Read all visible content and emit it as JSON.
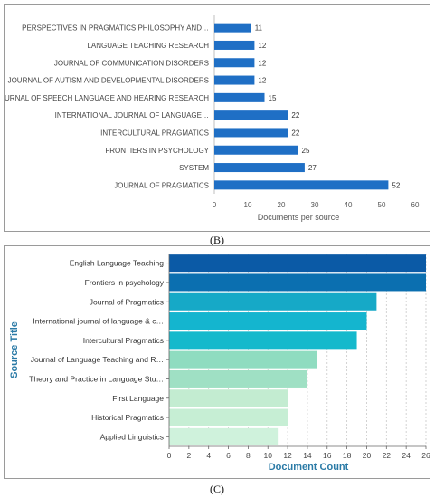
{
  "panels": {
    "b_label": "(B)",
    "c_label": "(C)"
  },
  "colors": {
    "b_bar": "#1f6fc5",
    "c_gradient": [
      "#0b5aa6",
      "#0b6fb0",
      "#16a9c7",
      "#14b5cf",
      "#15b9cc",
      "#8fdcc0",
      "#9fe0c4",
      "#c3ecd1",
      "#c6eed4",
      "#cff2dc"
    ],
    "c_axis_title": "#2a7aa6"
  },
  "chart_data": [
    {
      "type": "bar",
      "orientation": "horizontal",
      "categories": [
        "PERSPECTIVES IN PRAGMATICS PHILOSOPHY AND…",
        "LANGUAGE TEACHING RESEARCH",
        "JOURNAL OF COMMUNICATION DISORDERS",
        "JOURNAL OF AUTISM AND DEVELOPMENTAL DISORDERS",
        "JOURNAL OF SPEECH LANGUAGE AND HEARING RESEARCH",
        "INTERNATIONAL JOURNAL OF LANGUAGE…",
        "INTERCULTURAL PRAGMATICS",
        "FRONTIERS IN PSYCHOLOGY",
        "SYSTEM",
        "JOURNAL OF PRAGMATICS"
      ],
      "values": [
        11,
        12,
        12,
        12,
        15,
        22,
        22,
        25,
        27,
        52
      ],
      "data_labels": [
        "11",
        "12",
        "12",
        "12",
        "15",
        "22",
        "22",
        "25",
        "27",
        "52"
      ],
      "xlabel": "Documents per source",
      "ylabel": "",
      "xlim": [
        0,
        60
      ],
      "xticks": [
        0,
        10,
        20,
        30,
        40,
        50,
        60
      ],
      "xtick_labels": [
        "0",
        "10",
        "20",
        "30",
        "40",
        "50",
        "60"
      ],
      "grid": false
    },
    {
      "type": "bar",
      "orientation": "horizontal",
      "categories": [
        "English Language Teaching",
        "Frontiers in psychology",
        "Journal of Pragmatics",
        "International journal of language & c…",
        "Intercultural Pragmatics",
        "Journal of Language Teaching and R…",
        "Theory and Practice in Language Stu…",
        "First Language",
        "Historical Pragmatics",
        "Applied Linguistics"
      ],
      "values": [
        26,
        26,
        21,
        20,
        19,
        15,
        14,
        12,
        12,
        11
      ],
      "xlabel": "Document Count",
      "ylabel": "Source Title",
      "xlim": [
        0,
        26
      ],
      "xticks": [
        0,
        2,
        4,
        6,
        8,
        10,
        12,
        14,
        16,
        18,
        20,
        22,
        24,
        26
      ],
      "xtick_labels": [
        "0",
        "2",
        "4",
        "6",
        "8",
        "10",
        "12",
        "14",
        "16",
        "18",
        "20",
        "22",
        "24",
        "26"
      ],
      "grid": true
    }
  ]
}
